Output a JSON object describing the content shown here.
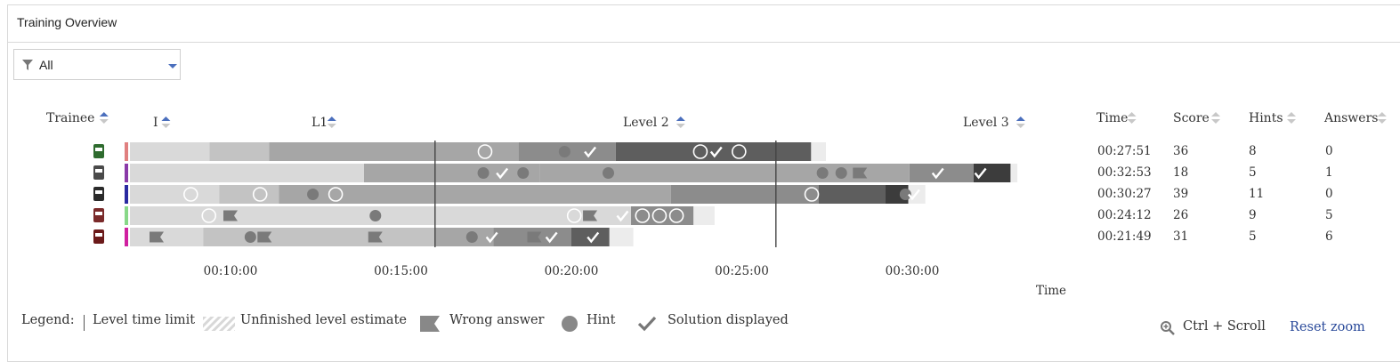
{
  "panel": {
    "title": "Training Overview"
  },
  "filter": {
    "value": "All",
    "icon": "filter-icon"
  },
  "columns": {
    "trainee": "Trainee",
    "levels": [
      "I",
      "L1",
      "Level 2",
      "Level 3"
    ],
    "time": "Time",
    "score": "Score",
    "hints": "Hints",
    "answers": "Answers"
  },
  "axis": {
    "label": "Time",
    "ticks": [
      "00:10:00",
      "00:15:00",
      "00:20:00",
      "00:25:00",
      "00:30:00"
    ]
  },
  "level_time_limits": [
    "00:16:00",
    "00:26:00"
  ],
  "trainees": [
    {
      "avatar_color": "#2e6b2e",
      "side_color": "#e08080",
      "time": "00:27:51",
      "score": "36",
      "hints": "8",
      "answers": "0"
    },
    {
      "avatar_color": "#4a4a4a",
      "side_color": "#8a3aa8",
      "time": "00:32:53",
      "score": "18",
      "hints": "5",
      "answers": "1"
    },
    {
      "avatar_color": "#2a2a2a",
      "side_color": "#2a2aa0",
      "time": "00:30:27",
      "score": "39",
      "hints": "11",
      "answers": "0"
    },
    {
      "avatar_color": "#7a2a2a",
      "side_color": "#88d888",
      "time": "00:24:12",
      "score": "26",
      "hints": "9",
      "answers": "5"
    },
    {
      "avatar_color": "#6b1a1a",
      "side_color": "#d020a0",
      "time": "00:21:49",
      "score": "31",
      "hints": "5",
      "answers": "6"
    }
  ],
  "legend": {
    "title": "Legend:",
    "time_limit": "Level time limit",
    "unfinished": "Unfinished level estimate",
    "wrong_answer": "Wrong answer",
    "hint": "Hint",
    "solution": "Solution displayed"
  },
  "zoom": {
    "hint": "Ctrl + Scroll",
    "reset": "Reset zoom"
  },
  "level_colors": [
    "#d9d9d9",
    "#c3c3c3",
    "#a6a6a6",
    "#8c8c8c",
    "#5e5e5e",
    "#3c3c3c"
  ]
}
